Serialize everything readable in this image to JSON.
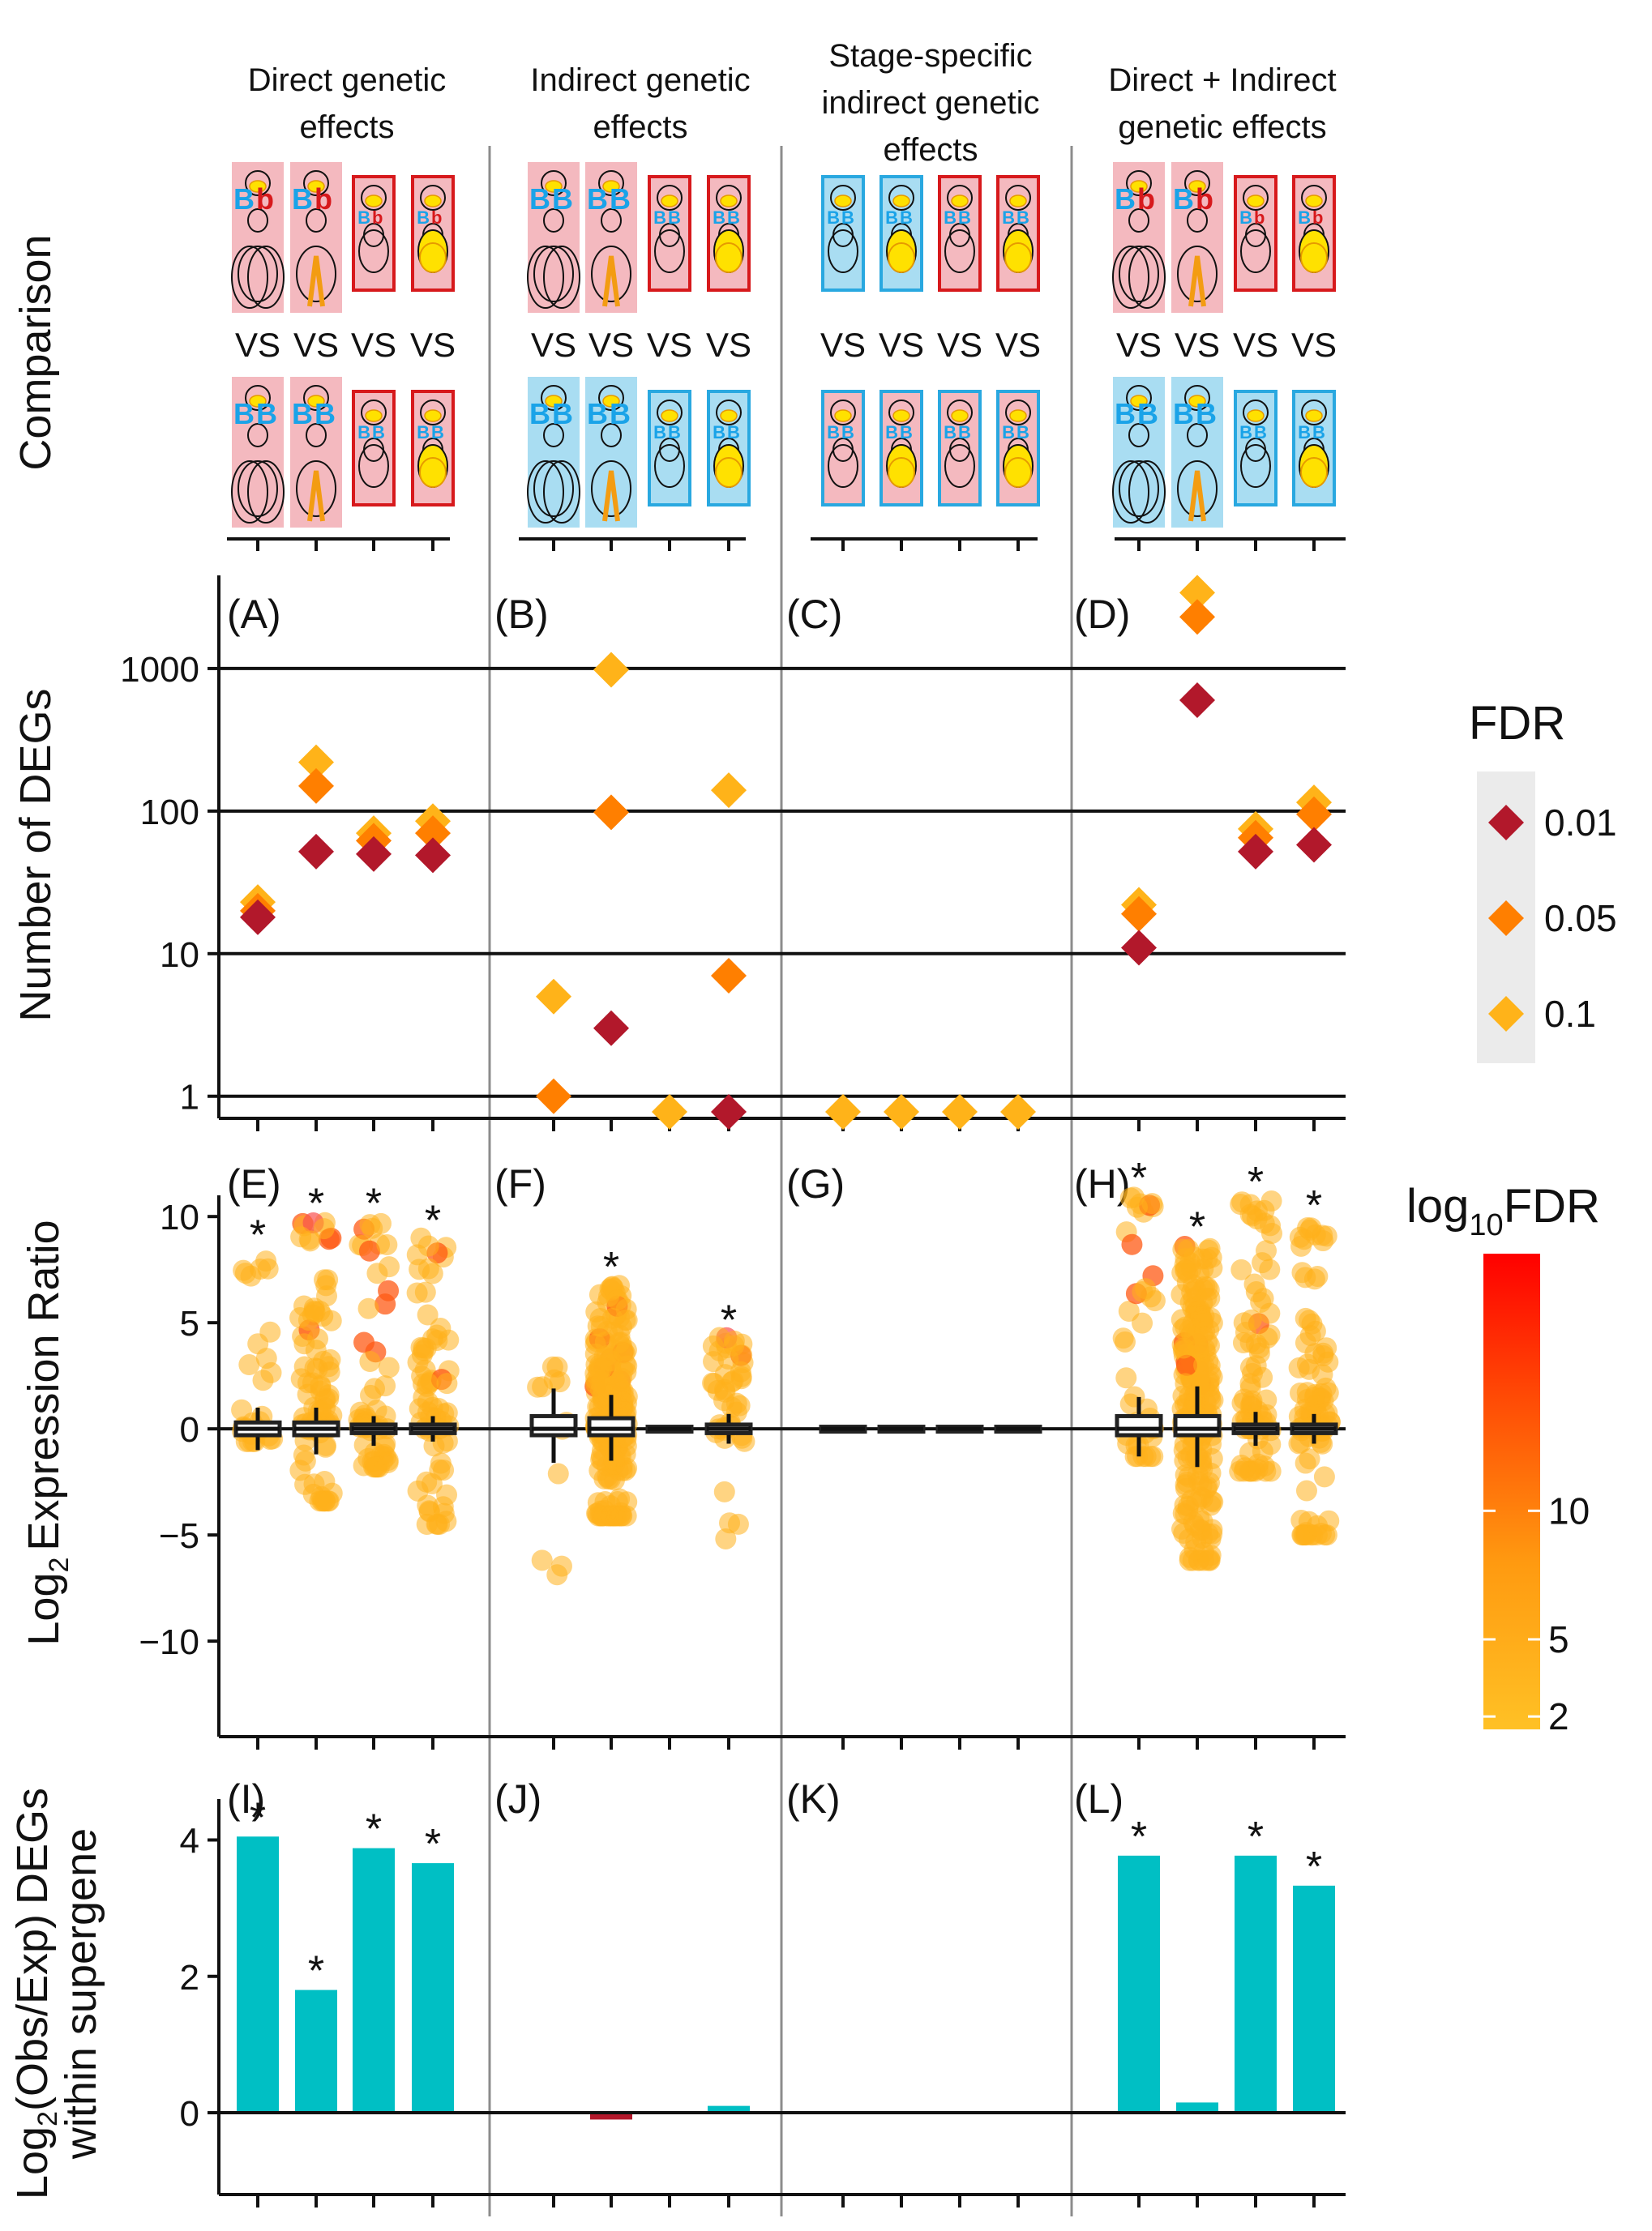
{
  "colors": {
    "bar_positive": "#00BFC4",
    "bar_negative": "#B2182B",
    "fdr_0_01": "#B2182B",
    "fdr_0_05": "#FF7F00",
    "fdr_0_1": "#FFB319",
    "colorbar_low": "#FFC125",
    "colorbar_high": "#FF0000",
    "female_box": "#F4B9BF",
    "male_box": "#A9DDF2",
    "red_outline": "#D7191C",
    "blue_outline": "#29A8E0"
  },
  "headers": [
    [
      "Direct genetic",
      "effects"
    ],
    [
      "Indirect genetic",
      "effects"
    ],
    [
      "Stage-specific",
      "indirect genetic",
      "effects"
    ],
    [
      "Direct + Indirect",
      "genetic effects"
    ]
  ],
  "comparison": {
    "ylabel": "Comparison",
    "vs_label": "VS",
    "genotypes": [
      {
        "top": [
          "Bb",
          "Bb",
          "Bb",
          "Bb"
        ],
        "bottom": [
          "BB",
          "BB",
          "BB",
          "BB"
        ]
      },
      {
        "top": [
          "BB",
          "BB",
          "BB",
          "BB"
        ],
        "bottom": [
          "BB",
          "BB",
          "BB",
          "BB"
        ]
      },
      {
        "top": [
          "BB",
          "BB",
          "BB",
          "BB"
        ],
        "bottom": [
          "BB",
          "BB",
          "BB",
          "BB"
        ]
      },
      {
        "top": [
          "Bb",
          "Bb",
          "Bb",
          "Bb"
        ],
        "bottom": [
          "BB",
          "BB",
          "BB",
          "BB"
        ]
      }
    ],
    "icon_names": [
      "queen-pupa-icon",
      "worker-pupa-icon",
      "queen-larva-icon",
      "worker-larva-icon"
    ]
  },
  "chart_data": [
    {
      "type": "scatter",
      "ylabel": "Number of DEGs",
      "yscale": "log",
      "ylim": [
        0.7,
        4500
      ],
      "yticks": [
        "1",
        "10",
        "100",
        "1000"
      ],
      "panels": [
        "(A)",
        "(B)",
        "(C)",
        "(D)"
      ],
      "legend": {
        "title": "FDR",
        "entries": [
          "0.01",
          "0.05",
          "0.1"
        ],
        "placement": "right"
      },
      "points": [
        [
          {
            "x": 1,
            "fdr": "0.1",
            "y": 23
          },
          {
            "x": 1,
            "fdr": "0.05",
            "y": 20
          },
          {
            "x": 1,
            "fdr": "0.01",
            "y": 18
          },
          {
            "x": 2,
            "fdr": "0.1",
            "y": 220
          },
          {
            "x": 2,
            "fdr": "0.05",
            "y": 150
          },
          {
            "x": 2,
            "fdr": "0.01",
            "y": 52
          },
          {
            "x": 3,
            "fdr": "0.1",
            "y": 70
          },
          {
            "x": 3,
            "fdr": "0.05",
            "y": 62
          },
          {
            "x": 3,
            "fdr": "0.01",
            "y": 50
          },
          {
            "x": 4,
            "fdr": "0.1",
            "y": 85
          },
          {
            "x": 4,
            "fdr": "0.05",
            "y": 70
          },
          {
            "x": 4,
            "fdr": "0.01",
            "y": 49
          }
        ],
        [
          {
            "x": 1,
            "fdr": "0.1",
            "y": 5
          },
          {
            "x": 1,
            "fdr": "0.05",
            "y": 1
          },
          {
            "x": 2,
            "fdr": "0.1",
            "y": 980
          },
          {
            "x": 2,
            "fdr": "0.05",
            "y": 98
          },
          {
            "x": 2,
            "fdr": "0.01",
            "y": 3
          },
          {
            "x": 3,
            "fdr": "0.1",
            "y": 0.7
          },
          {
            "x": 4,
            "fdr": "0.1",
            "y": 140
          },
          {
            "x": 4,
            "fdr": "0.05",
            "y": 7
          },
          {
            "x": 4,
            "fdr": "0.01",
            "y": 0.7
          }
        ],
        [
          {
            "x": 1,
            "fdr": "0.1",
            "y": 0.7
          },
          {
            "x": 2,
            "fdr": "0.1",
            "y": 0.7
          },
          {
            "x": 3,
            "fdr": "0.1",
            "y": 0.7
          },
          {
            "x": 4,
            "fdr": "0.1",
            "y": 0.7
          }
        ],
        [
          {
            "x": 1,
            "fdr": "0.1",
            "y": 22
          },
          {
            "x": 1,
            "fdr": "0.05",
            "y": 19
          },
          {
            "x": 1,
            "fdr": "0.01",
            "y": 11
          },
          {
            "x": 2,
            "fdr": "0.1",
            "y": 3400
          },
          {
            "x": 2,
            "fdr": "0.05",
            "y": 2300
          },
          {
            "x": 2,
            "fdr": "0.01",
            "y": 600
          },
          {
            "x": 3,
            "fdr": "0.1",
            "y": 75
          },
          {
            "x": 3,
            "fdr": "0.05",
            "y": 65
          },
          {
            "x": 3,
            "fdr": "0.01",
            "y": 52
          },
          {
            "x": 4,
            "fdr": "0.1",
            "y": 115
          },
          {
            "x": 4,
            "fdr": "0.05",
            "y": 95
          },
          {
            "x": 4,
            "fdr": "0.01",
            "y": 58
          }
        ]
      ]
    },
    {
      "type": "scatter",
      "ylabel": "Expression Ratio",
      "ylabel_prefix": "Log",
      "ylabel_sub": "2",
      "ylim": [
        -14.5,
        11
      ],
      "yticks": [
        "10",
        "5",
        "0",
        "−5",
        "−10"
      ],
      "panels": [
        "(E)",
        "(F)",
        "(G)",
        "(H)"
      ],
      "colorbar": {
        "title": "log",
        "title_sub": "10",
        "title_suffix": "FDR",
        "ticks": [
          "2",
          "5",
          "10"
        ],
        "range": [
          1.5,
          20
        ]
      },
      "significant": [
        [
          true,
          true,
          true,
          true
        ],
        [
          false,
          true,
          false,
          true
        ],
        [
          false,
          false,
          false,
          false
        ],
        [
          true,
          true,
          true,
          true
        ]
      ],
      "groups": [
        [
          {
            "x": 1,
            "ymin": -0.6,
            "ymax": 8.3,
            "n": 30,
            "box": [
              -0.3,
              0.3
            ],
            "whisk": [
              -1,
              1
            ]
          },
          {
            "x": 2,
            "ymin": -3.4,
            "ymax": 9.8,
            "n": 90,
            "box": [
              -0.3,
              0.3
            ],
            "whisk": [
              -1.2,
              1
            ]
          },
          {
            "x": 3,
            "ymin": -1.8,
            "ymax": 9.8,
            "n": 60,
            "box": [
              -0.2,
              0.2
            ],
            "whisk": [
              -0.8,
              0.6
            ]
          },
          {
            "x": 4,
            "ymin": -4.5,
            "ymax": 9.0,
            "n": 70,
            "box": [
              -0.2,
              0.2
            ],
            "whisk": [
              -0.6,
              0.6
            ]
          }
        ],
        [
          {
            "x": 1,
            "ymin": -6.9,
            "ymax": 3.0,
            "n": 12,
            "box": [
              -0.3,
              0.6
            ],
            "whisk": [
              -1.6,
              1.9
            ]
          },
          {
            "x": 2,
            "ymin": -4.1,
            "ymax": 6.8,
            "n": 240,
            "box": [
              -0.3,
              0.5
            ],
            "whisk": [
              -1.5,
              1.6
            ]
          },
          {
            "x": 3,
            "ymin": 0,
            "ymax": 0,
            "n": 0,
            "box": [
              -0.1,
              0.1
            ],
            "whisk": [
              -0.1,
              0.1
            ]
          },
          {
            "x": 4,
            "ymin": -5.2,
            "ymax": 4.3,
            "n": 45,
            "box": [
              -0.2,
              0.2
            ],
            "whisk": [
              -0.7,
              0.7
            ]
          }
        ],
        [
          {
            "x": 1,
            "ymin": 0,
            "ymax": 0,
            "n": 0,
            "box": [
              -0.1,
              0.1
            ],
            "whisk": [
              -0.1,
              0.1
            ]
          },
          {
            "x": 2,
            "ymin": 0,
            "ymax": 0,
            "n": 0,
            "box": [
              -0.1,
              0.1
            ],
            "whisk": [
              -0.1,
              0.1
            ]
          },
          {
            "x": 3,
            "ymin": 0,
            "ymax": 0,
            "n": 0,
            "box": [
              -0.1,
              0.1
            ],
            "whisk": [
              -0.1,
              0.1
            ]
          },
          {
            "x": 4,
            "ymin": 0,
            "ymax": 0,
            "n": 0,
            "box": [
              -0.1,
              0.1
            ],
            "whisk": [
              -0.1,
              0.1
            ]
          }
        ],
        [
          {
            "x": 1,
            "ymin": -1.3,
            "ymax": 11.0,
            "n": 40,
            "box": [
              -0.3,
              0.6
            ],
            "whisk": [
              -1.3,
              1.5
            ]
          },
          {
            "x": 2,
            "ymin": -6.2,
            "ymax": 8.7,
            "n": 260,
            "box": [
              -0.3,
              0.6
            ],
            "whisk": [
              -1.8,
              2.0
            ]
          },
          {
            "x": 3,
            "ymin": -2.0,
            "ymax": 10.8,
            "n": 80,
            "box": [
              -0.2,
              0.2
            ],
            "whisk": [
              -0.8,
              0.8
            ]
          },
          {
            "x": 4,
            "ymin": -5.0,
            "ymax": 9.7,
            "n": 90,
            "box": [
              -0.2,
              0.2
            ],
            "whisk": [
              -0.7,
              0.7
            ]
          }
        ]
      ]
    },
    {
      "type": "bar",
      "ylabel": [
        "DEGs",
        "within supergene"
      ],
      "ylabel_prefix": "Log",
      "ylabel_sub": "2",
      "ylabel_suffix": "(Obs/Exp)",
      "ylim": [
        -1.2,
        4.6
      ],
      "yticks": [
        "4",
        "2",
        "0"
      ],
      "panels": [
        "(I)",
        "(J)",
        "(K)",
        "(L)"
      ],
      "values": [
        [
          4.05,
          1.8,
          3.88,
          3.66
        ],
        [
          null,
          -0.1,
          null,
          0.1
        ],
        [
          null,
          null,
          null,
          null
        ],
        [
          3.77,
          0.15,
          3.77,
          3.33
        ]
      ],
      "significant": [
        [
          true,
          true,
          true,
          true
        ],
        [
          false,
          false,
          false,
          false
        ],
        [
          false,
          false,
          false,
          false
        ],
        [
          true,
          false,
          true,
          true
        ]
      ]
    }
  ]
}
